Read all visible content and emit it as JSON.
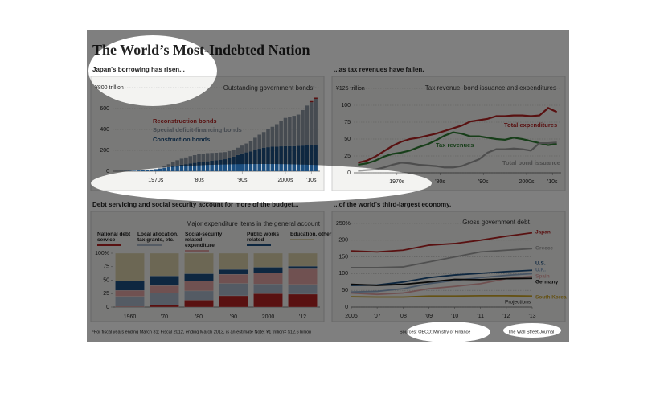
{
  "title": "The World’s Most-Indebted Nation",
  "footnote": "¹For fiscal years ending March 31; Fiscal 2012, ending March 2013, is an estimate   Note: ¥1 trillion= $12.6 billion",
  "sources": "Sources: OECD; Ministry of Finance",
  "credit": "The Wall Street Journal",
  "chart_data": [
    {
      "type": "bar",
      "stacked": true,
      "title": "Japan's borrowing has risen...",
      "subtitle": "Outstanding government bonds¹",
      "x": [
        1966,
        1967,
        1968,
        1969,
        1970,
        1971,
        1972,
        1973,
        1974,
        1975,
        1976,
        1977,
        1978,
        1979,
        1980,
        1981,
        1982,
        1983,
        1984,
        1985,
        1986,
        1987,
        1988,
        1989,
        1990,
        1991,
        1992,
        1993,
        1994,
        1995,
        1996,
        1997,
        1998,
        1999,
        2000,
        2001,
        2002,
        2003,
        2004,
        2005,
        2006,
        2007,
        2008,
        2009,
        2010,
        2011,
        2012
      ],
      "series": [
        {
          "name": "Construction bonds",
          "color": "#1c4f80",
          "values": [
            0.7,
            2,
            3,
            4,
            5,
            7,
            10,
            13,
            16,
            19,
            24,
            31,
            39,
            47,
            55,
            62,
            68,
            74,
            80,
            85,
            90,
            95,
            100,
            105,
            110,
            115,
            125,
            140,
            155,
            170,
            180,
            190,
            205,
            215,
            225,
            230,
            235,
            235,
            238,
            240,
            240,
            240,
            242,
            245,
            248,
            250,
            252
          ]
        },
        {
          "name": "Special deficit-financing bonds",
          "color": "#8c96a3",
          "values": [
            0,
            0,
            0,
            0,
            0,
            0,
            0,
            0,
            0,
            2,
            9,
            18,
            28,
            40,
            50,
            58,
            64,
            70,
            74,
            77,
            78,
            78,
            75,
            72,
            70,
            68,
            68,
            68,
            70,
            75,
            85,
            95,
            115,
            135,
            150,
            170,
            190,
            215,
            245,
            270,
            280,
            290,
            300,
            340,
            380,
            410,
            440
          ]
        },
        {
          "name": "Reconstruction bonds",
          "color": "#b22222",
          "values": [
            0,
            0,
            0,
            0,
            0,
            0,
            0,
            0,
            0,
            0,
            0,
            0,
            0,
            0,
            0,
            0,
            0,
            0,
            0,
            0,
            0,
            0,
            0,
            0,
            0,
            0,
            0,
            0,
            0,
            0,
            0,
            0,
            0,
            0,
            0,
            0,
            0,
            0,
            0,
            0,
            0,
            0,
            0,
            0,
            0,
            11,
            12
          ]
        }
      ],
      "xlim": [
        1965,
        2013
      ],
      "xticks": [
        {
          "value": 1975,
          "label": "1970s"
        },
        {
          "value": 1985,
          "label": "'80s"
        },
        {
          "value": 1995,
          "label": "'90s"
        },
        {
          "value": 2005,
          "label": "2000s"
        },
        {
          "value": 2011,
          "label": "'10s"
        }
      ],
      "ylim": [
        0,
        800
      ],
      "yticks": [
        0,
        200,
        400,
        600,
        {
          "value": 800,
          "label": "¥800 trillion"
        }
      ],
      "grid": true
    },
    {
      "type": "line",
      "title": "...as tax revenues have fallen.",
      "subtitle": "Tax revenue, bond issuance and expenditures",
      "x": [
        1966,
        1968,
        1970,
        1972,
        1974,
        1976,
        1978,
        1980,
        1982,
        1984,
        1986,
        1988,
        1990,
        1992,
        1994,
        1996,
        1998,
        2000,
        2002,
        2004,
        2006,
        2008,
        2010,
        2012
      ],
      "series": [
        {
          "name": "Total expenditures",
          "color": "#b22222",
          "values": [
            15,
            18,
            24,
            32,
            40,
            46,
            50,
            52,
            55,
            58,
            62,
            66,
            70,
            76,
            78,
            80,
            84,
            84,
            85,
            85,
            84,
            85,
            96,
            90
          ]
        },
        {
          "name": "Tax revenues",
          "color": "#2e7d32",
          "values": [
            12,
            14,
            18,
            24,
            28,
            30,
            33,
            38,
            42,
            48,
            55,
            60,
            58,
            54,
            54,
            52,
            50,
            49,
            52,
            50,
            47,
            44,
            41,
            43
          ]
        },
        {
          "name": "Total bond issuance",
          "color": "#9a9a9a",
          "values": [
            3,
            4,
            5,
            8,
            12,
            15,
            14,
            12,
            11,
            10,
            8,
            8,
            10,
            15,
            20,
            30,
            35,
            35,
            36,
            35,
            33,
            44,
            44,
            45
          ]
        }
      ],
      "xlim": [
        1965,
        2013
      ],
      "xticks": [
        {
          "value": 1975,
          "label": "1970s"
        },
        {
          "value": 1985,
          "label": "'80s"
        },
        {
          "value": 1995,
          "label": "'90s"
        },
        {
          "value": 2005,
          "label": "2000s"
        },
        {
          "value": 2011,
          "label": "'10s"
        }
      ],
      "ylim": [
        0,
        125
      ],
      "yticks": [
        0,
        25,
        50,
        75,
        100,
        {
          "value": 125,
          "label": "¥125 trillion"
        }
      ],
      "grid": true
    },
    {
      "type": "bar",
      "stacked": true,
      "title": "Debt servicing and social security account for more of the budget...",
      "subtitle": "Major expenditure items in the general account",
      "categories": [
        "1960",
        "'70",
        "'80",
        "'90",
        "2000",
        "'12"
      ],
      "series": [
        {
          "name": "National debt service",
          "color": "#b22222",
          "values": [
            1,
            4,
            13,
            21,
            25,
            24
          ]
        },
        {
          "name": "Local allocation, tax grants, etc.",
          "color": "#a9b7c9",
          "values": [
            19,
            22,
            17,
            23,
            18,
            18
          ]
        },
        {
          "name": "Social-security related expenditure",
          "color": "#e0a3a3",
          "values": [
            11,
            14,
            19,
            17,
            20,
            29
          ]
        },
        {
          "name": "Public works related",
          "color": "#1c4f80",
          "values": [
            17,
            18,
            13,
            9,
            11,
            5
          ]
        },
        {
          "name": "Education, other",
          "color": "#d9cfa8",
          "values": [
            52,
            42,
            38,
            30,
            26,
            24
          ]
        }
      ],
      "ylim": [
        0,
        100
      ],
      "yticks": [
        0,
        25,
        50,
        75,
        {
          "value": 100,
          "label": "100%"
        }
      ],
      "grid": false
    },
    {
      "type": "line",
      "title": "...of the world's third-largest economy.",
      "subtitle": "Gross government debt",
      "annotation": "Projections",
      "x": [
        2006,
        2007,
        2008,
        2009,
        2010,
        2011,
        2012,
        2013
      ],
      "series": [
        {
          "name": "Japan",
          "color": "#b22222",
          "values": [
            168,
            165,
            170,
            185,
            190,
            200,
            212,
            222
          ]
        },
        {
          "name": "Greece",
          "color": "#a0a0a0",
          "values": [
            118,
            118,
            120,
            135,
            150,
            165,
            170,
            175
          ]
        },
        {
          "name": "U.S.",
          "color": "#1c4f80",
          "values": [
            65,
            66,
            75,
            88,
            96,
            101,
            106,
            110
          ]
        },
        {
          "name": "U.K.",
          "color": "#8fa9c8",
          "values": [
            45,
            47,
            55,
            70,
            80,
            88,
            95,
            100
          ]
        },
        {
          "name": "Spain",
          "color": "#e0a3a3",
          "values": [
            42,
            38,
            42,
            55,
            62,
            70,
            85,
            92
          ]
        },
        {
          "name": "Germany",
          "color": "#111111",
          "values": [
            68,
            65,
            68,
            75,
            83,
            82,
            85,
            86
          ]
        },
        {
          "name": "South Korea",
          "color": "#c9a227",
          "values": [
            31,
            30,
            30,
            33,
            33,
            34,
            34,
            33
          ]
        }
      ],
      "xlim": [
        2006,
        2013
      ],
      "xticks": [
        2006,
        {
          "value": 2007,
          "label": "'07"
        },
        {
          "value": 2008,
          "label": "'08"
        },
        {
          "value": 2009,
          "label": "'09"
        },
        {
          "value": 2010,
          "label": "'10"
        },
        {
          "value": 2011,
          "label": "'11"
        },
        {
          "value": 2012,
          "label": "'12"
        },
        {
          "value": 2013,
          "label": "'13"
        }
      ],
      "ylim": [
        0,
        250
      ],
      "yticks": [
        0,
        50,
        100,
        150,
        200,
        {
          "value": 250,
          "label": "250%"
        }
      ],
      "grid": true
    }
  ]
}
